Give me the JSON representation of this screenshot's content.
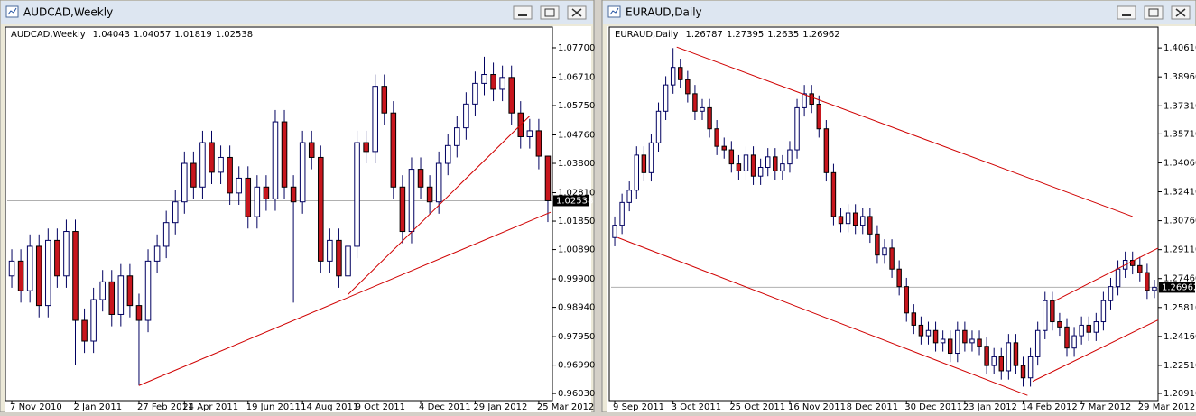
{
  "windows": [
    {
      "title": "AUDCAD,Weekly"
    },
    {
      "title": "EURAUD,Daily"
    }
  ],
  "chart_data": [
    {
      "type": "candlestick",
      "subtitle": "AUDCAD,Weekly",
      "categories": [
        "7 Nov 2010",
        null,
        null,
        null,
        null,
        null,
        null,
        "2 Jan 2011",
        null,
        null,
        null,
        null,
        null,
        null,
        "27 Feb 2011",
        null,
        null,
        null,
        null,
        "24 Apr 2011",
        null,
        null,
        null,
        null,
        null,
        null,
        "19 Jun 2011",
        null,
        null,
        null,
        null,
        null,
        "14 Aug 2011",
        null,
        null,
        null,
        null,
        null,
        "9 Oct 2011",
        null,
        null,
        null,
        null,
        null,
        null,
        "4 Dec 2011",
        null,
        null,
        null,
        null,
        null,
        "29 Jan 2012",
        null,
        null,
        null,
        null,
        null,
        null,
        "25 Mar 2012",
        null
      ],
      "open": [
        1.0,
        1.005,
        0.995,
        1.01,
        0.99,
        1.012,
        1.0,
        1.015,
        0.985,
        0.978,
        0.992,
        0.998,
        0.987,
        1.0,
        0.99,
        0.985,
        1.005,
        1.01,
        1.018,
        1.025,
        1.038,
        1.03,
        1.045,
        1.035,
        1.04,
        1.028,
        1.033,
        1.02,
        1.03,
        1.026,
        1.052,
        1.03,
        1.025,
        1.045,
        1.04,
        1.005,
        1.012,
        1.0,
        1.01,
        1.045,
        1.042,
        1.064,
        1.055,
        1.03,
        1.015,
        1.036,
        1.03,
        1.025,
        1.038,
        1.044,
        1.05,
        1.058,
        1.065,
        1.068,
        1.063,
        1.067,
        1.055,
        1.047,
        1.049,
        1.04043
      ],
      "high": [
        1.009,
        1.009,
        1.014,
        1.014,
        1.016,
        1.016,
        1.019,
        1.019,
        0.989,
        0.996,
        1.002,
        1.002,
        1.004,
        1.004,
        0.994,
        1.009,
        1.014,
        1.022,
        1.029,
        1.042,
        1.042,
        1.049,
        1.049,
        1.044,
        1.044,
        1.037,
        1.037,
        1.034,
        1.034,
        1.056,
        1.056,
        1.034,
        1.049,
        1.049,
        1.044,
        1.016,
        1.016,
        1.014,
        1.049,
        1.049,
        1.068,
        1.068,
        1.059,
        1.034,
        1.04,
        1.04,
        1.034,
        1.042,
        1.048,
        1.054,
        1.062,
        1.069,
        1.074,
        1.072,
        1.071,
        1.071,
        1.059,
        1.053,
        1.053,
        1.04057
      ],
      "low": [
        0.996,
        0.991,
        0.991,
        0.986,
        0.986,
        0.996,
        0.996,
        0.97,
        0.974,
        0.974,
        0.988,
        0.983,
        0.983,
        0.986,
        0.963,
        0.981,
        1.001,
        1.006,
        1.014,
        1.021,
        1.026,
        1.026,
        1.031,
        1.031,
        1.024,
        1.024,
        1.016,
        1.016,
        1.022,
        1.022,
        1.026,
        0.991,
        1.021,
        1.036,
        1.001,
        1.001,
        0.996,
        0.9937,
        1.006,
        1.038,
        1.038,
        1.051,
        1.026,
        1.011,
        1.011,
        1.026,
        1.021,
        1.021,
        1.034,
        1.04,
        1.046,
        1.054,
        1.061,
        1.059,
        1.059,
        1.051,
        1.043,
        1.043,
        1.036,
        1.01819
      ],
      "close": [
        1.005,
        0.995,
        1.01,
        0.99,
        1.012,
        1.0,
        1.015,
        0.985,
        0.978,
        0.992,
        0.998,
        0.987,
        1.0,
        0.99,
        0.985,
        1.005,
        1.01,
        1.018,
        1.025,
        1.038,
        1.03,
        1.045,
        1.035,
        1.04,
        1.028,
        1.033,
        1.02,
        1.03,
        1.026,
        1.052,
        1.03,
        1.025,
        1.045,
        1.04,
        1.005,
        1.012,
        1.0,
        1.01,
        1.045,
        1.042,
        1.064,
        1.055,
        1.03,
        1.015,
        1.036,
        1.03,
        1.025,
        1.038,
        1.044,
        1.05,
        1.058,
        1.065,
        1.068,
        1.063,
        1.067,
        1.055,
        1.047,
        1.049,
        1.04043,
        1.02538
      ],
      "ylim": [
        0.9579,
        1.084
      ],
      "yticks": [
        {
          "value": 1.077,
          "label": "1.07700"
        },
        {
          "value": 1.0671,
          "label": "1.06710"
        },
        {
          "value": 1.0575,
          "label": "1.05750"
        },
        {
          "value": 1.0476,
          "label": "1.04760"
        },
        {
          "value": 1.038,
          "label": "1.03800"
        },
        {
          "value": 1.0281,
          "label": "1.02810"
        },
        {
          "value": 1.0185,
          "label": "1.01850"
        },
        {
          "value": 1.0089,
          "label": "1.00890"
        },
        {
          "value": 0.999,
          "label": "0.99900"
        },
        {
          "value": 0.9894,
          "label": "0.98940"
        },
        {
          "value": 0.9795,
          "label": "0.97950"
        },
        {
          "value": 0.9699,
          "label": "0.96990"
        },
        {
          "value": 0.9603,
          "label": "0.96030"
        }
      ],
      "trendlines": [
        {
          "x": [
            14,
            59.3
          ],
          "y": [
            0.963,
            1.0215
          ]
        },
        {
          "x": [
            37,
            57
          ],
          "y": [
            0.9937,
            1.054
          ]
        }
      ],
      "up_color": "#ffffff",
      "down_color": "#c8161d",
      "outline_color": "#000060",
      "trendline_color": "#d00000",
      "last_price_line": true,
      "grid": false
    },
    {
      "type": "candlestick",
      "subtitle": "EURAUD,Daily",
      "categories": [
        "9 Sep 2011",
        null,
        null,
        null,
        null,
        null,
        null,
        null,
        "3 Oct 2011",
        null,
        null,
        null,
        null,
        null,
        null,
        null,
        "25 Oct 2011",
        null,
        null,
        null,
        null,
        null,
        null,
        null,
        "16 Nov 2011",
        null,
        null,
        null,
        null,
        null,
        null,
        null,
        "8 Dec 2011",
        null,
        null,
        null,
        null,
        null,
        null,
        null,
        "30 Dec 2011",
        null,
        null,
        null,
        null,
        null,
        null,
        null,
        "23 Jan 2012",
        null,
        null,
        null,
        null,
        null,
        null,
        null,
        "14 Feb 2012",
        null,
        null,
        null,
        null,
        null,
        null,
        null,
        "7 Mar 2012",
        null,
        null,
        null,
        null,
        null,
        null,
        null,
        "29 Mar 2012",
        null,
        null
      ],
      "open": [
        1.298,
        1.305,
        1.318,
        1.325,
        1.345,
        1.335,
        1.352,
        1.37,
        1.385,
        1.395,
        1.388,
        1.38,
        1.37,
        1.372,
        1.36,
        1.35,
        1.348,
        1.34,
        1.336,
        1.345,
        1.333,
        1.338,
        1.344,
        1.336,
        1.34,
        1.348,
        1.372,
        1.38,
        1.374,
        1.36,
        1.335,
        1.31,
        1.306,
        1.312,
        1.305,
        1.31,
        1.3,
        1.288,
        1.292,
        1.28,
        1.27,
        1.255,
        1.248,
        1.242,
        1.245,
        1.238,
        1.24,
        1.232,
        1.245,
        1.238,
        1.24,
        1.236,
        1.225,
        1.23,
        1.222,
        1.238,
        1.225,
        1.218,
        1.23,
        1.245,
        1.262,
        1.25,
        1.247,
        1.235,
        1.242,
        1.248,
        1.244,
        1.25,
        1.262,
        1.27,
        1.28,
        1.285,
        1.282,
        1.278,
        1.26787
      ],
      "high": [
        1.31,
        1.323,
        1.33,
        1.35,
        1.35,
        1.357,
        1.375,
        1.39,
        1.406,
        1.4,
        1.393,
        1.385,
        1.377,
        1.377,
        1.365,
        1.355,
        1.353,
        1.345,
        1.35,
        1.35,
        1.343,
        1.349,
        1.349,
        1.345,
        1.353,
        1.377,
        1.385,
        1.385,
        1.379,
        1.365,
        1.34,
        1.315,
        1.317,
        1.317,
        1.315,
        1.315,
        1.305,
        1.297,
        1.297,
        1.285,
        1.275,
        1.26,
        1.253,
        1.25,
        1.25,
        1.245,
        1.245,
        1.25,
        1.25,
        1.245,
        1.245,
        1.241,
        1.235,
        1.235,
        1.243,
        1.243,
        1.23,
        1.235,
        1.25,
        1.267,
        1.267,
        1.255,
        1.252,
        1.247,
        1.253,
        1.253,
        1.255,
        1.267,
        1.275,
        1.285,
        1.29,
        1.29,
        1.287,
        1.283,
        1.27395
      ],
      "low": [
        1.293,
        1.3,
        1.313,
        1.32,
        1.33,
        1.33,
        1.347,
        1.365,
        1.38,
        1.383,
        1.375,
        1.365,
        1.365,
        1.355,
        1.345,
        1.343,
        1.335,
        1.331,
        1.331,
        1.328,
        1.328,
        1.333,
        1.331,
        1.331,
        1.335,
        1.343,
        1.367,
        1.369,
        1.355,
        1.33,
        1.305,
        1.301,
        1.301,
        1.3,
        1.3,
        1.295,
        1.283,
        1.283,
        1.275,
        1.265,
        1.25,
        1.243,
        1.237,
        1.237,
        1.233,
        1.233,
        1.227,
        1.227,
        1.233,
        1.233,
        1.231,
        1.22,
        1.22,
        1.217,
        1.217,
        1.22,
        1.213,
        1.213,
        1.225,
        1.24,
        1.245,
        1.242,
        1.23,
        1.23,
        1.237,
        1.239,
        1.239,
        1.245,
        1.257,
        1.265,
        1.275,
        1.277,
        1.273,
        1.263,
        1.2635
      ],
      "close": [
        1.305,
        1.318,
        1.325,
        1.345,
        1.335,
        1.352,
        1.37,
        1.385,
        1.395,
        1.388,
        1.38,
        1.37,
        1.372,
        1.36,
        1.35,
        1.348,
        1.34,
        1.336,
        1.345,
        1.333,
        1.338,
        1.344,
        1.336,
        1.34,
        1.348,
        1.372,
        1.38,
        1.374,
        1.36,
        1.335,
        1.31,
        1.306,
        1.312,
        1.305,
        1.31,
        1.3,
        1.288,
        1.292,
        1.28,
        1.27,
        1.255,
        1.248,
        1.242,
        1.245,
        1.238,
        1.24,
        1.232,
        1.245,
        1.238,
        1.24,
        1.236,
        1.225,
        1.23,
        1.222,
        1.238,
        1.225,
        1.218,
        1.23,
        1.245,
        1.262,
        1.25,
        1.247,
        1.235,
        1.242,
        1.248,
        1.244,
        1.25,
        1.262,
        1.27,
        1.28,
        1.285,
        1.282,
        1.278,
        1.26787,
        1.26962
      ],
      "ylim": [
        1.205,
        1.418
      ],
      "yticks": [
        {
          "value": 1.4061,
          "label": "1.40610"
        },
        {
          "value": 1.3896,
          "label": "1.38960"
        },
        {
          "value": 1.3731,
          "label": "1.37310"
        },
        {
          "value": 1.3571,
          "label": "1.35710"
        },
        {
          "value": 1.3406,
          "label": "1.34060"
        },
        {
          "value": 1.3241,
          "label": "1.32410"
        },
        {
          "value": 1.3076,
          "label": "1.30760"
        },
        {
          "value": 1.2911,
          "label": "1.29110"
        },
        {
          "value": 1.2746,
          "label": "1.27460"
        },
        {
          "value": 1.2581,
          "label": "1.25810"
        },
        {
          "value": 1.2416,
          "label": "1.24160"
        },
        {
          "value": 1.2251,
          "label": "1.22510"
        },
        {
          "value": 1.2091,
          "label": "1.20910"
        }
      ],
      "trendlines": [
        {
          "x": [
            8.5,
            71
          ],
          "y": [
            1.4066,
            1.31
          ]
        },
        {
          "x": [
            0.4,
            56.6
          ],
          "y": [
            1.298,
            1.208
          ]
        },
        {
          "x": [
            57.3,
            74.5
          ],
          "y": [
            1.216,
            1.251
          ]
        },
        {
          "x": [
            60.4,
            74.5
          ],
          "y": [
            1.262,
            1.292
          ]
        }
      ],
      "up_color": "#ffffff",
      "down_color": "#c8161d",
      "outline_color": "#000060",
      "trendline_color": "#d00000",
      "last_price_line": true,
      "grid": false
    }
  ]
}
